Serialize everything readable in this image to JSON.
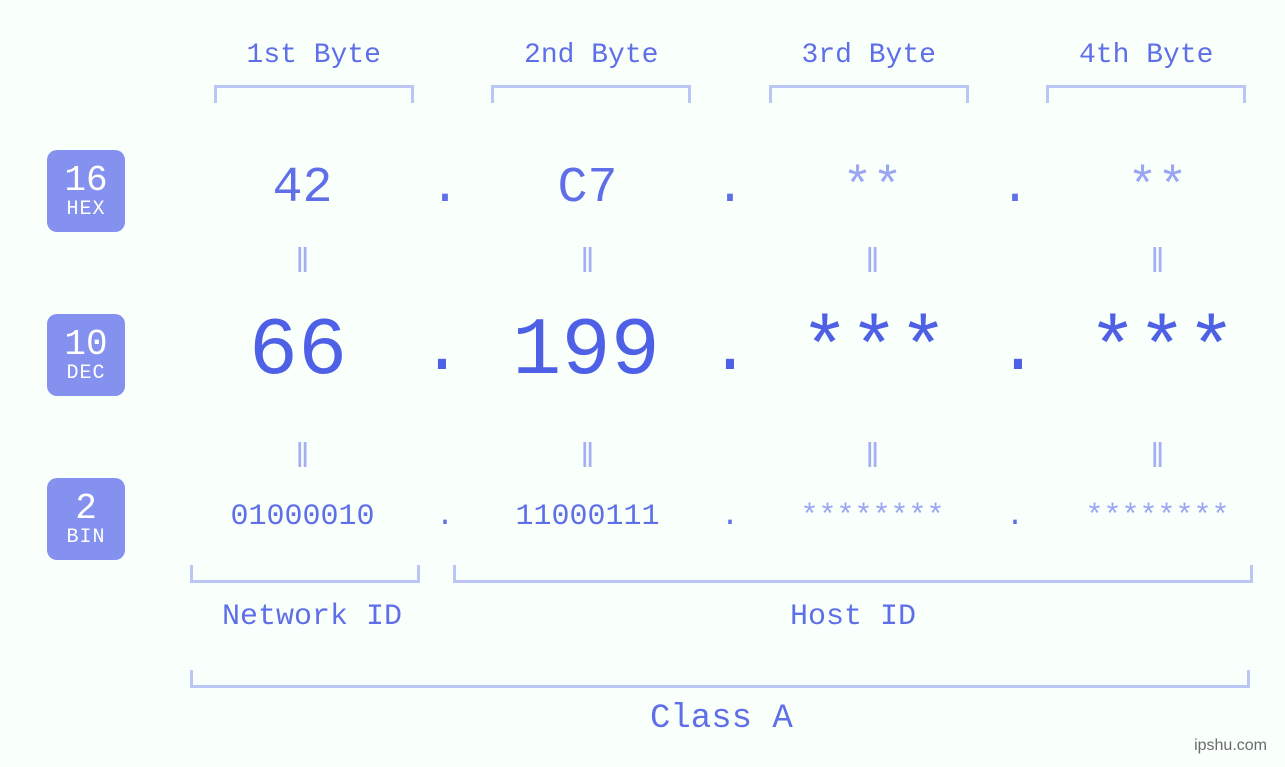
{
  "colors": {
    "background": "#f9fffb",
    "accent": "#5f6fe8",
    "accent_strong": "#4e61e6",
    "accent_muted": "#9aa6f2",
    "bracket": "#bcc6f5",
    "badge_bg": "#8591ef",
    "badge_fg": "#ffffff"
  },
  "typography": {
    "font_family": "Courier New, monospace",
    "header_fontsize": 28,
    "hex_fontsize": 50,
    "dec_fontsize": 82,
    "bin_fontsize": 30,
    "eq_fontsize": 34,
    "label_fontsize": 30,
    "class_fontsize": 34,
    "badge_num_fontsize": 36,
    "badge_lbl_fontsize": 20
  },
  "headers": [
    "1st Byte",
    "2nd Byte",
    "3rd Byte",
    "4th Byte"
  ],
  "bases": {
    "hex": {
      "num": "16",
      "label": "HEX"
    },
    "dec": {
      "num": "10",
      "label": "DEC"
    },
    "bin": {
      "num": "2",
      "label": "BIN"
    }
  },
  "eq_symbol": "ǁ",
  "dot": ".",
  "bytes": [
    {
      "hex": "42",
      "dec": "66",
      "bin": "01000010",
      "masked": false
    },
    {
      "hex": "C7",
      "dec": "199",
      "bin": "11000111",
      "masked": false
    },
    {
      "hex": "**",
      "dec": "***",
      "bin": "********",
      "masked": true
    },
    {
      "hex": "**",
      "dec": "***",
      "bin": "********",
      "masked": true
    }
  ],
  "sections": {
    "network_id": "Network ID",
    "host_id": "Host ID",
    "class": "Class A"
  },
  "watermark": "ipshu.com"
}
